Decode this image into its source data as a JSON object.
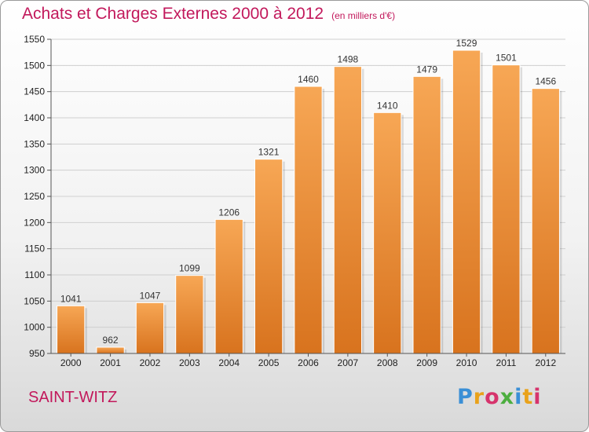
{
  "header": {
    "title": "Achats et Charges Externes 2000 à 2012",
    "unit": "(en milliers d'€)"
  },
  "footer": {
    "city": "SAINT-WITZ",
    "logo_text": "Proxiti"
  },
  "colors": {
    "title": "#c2185b",
    "bar_light": "#f7a755",
    "bar_dark": "#d8731e"
  },
  "chart_data": {
    "type": "bar",
    "title": "Achats et Charges Externes 2000 à 2012",
    "subtitle": "(en milliers d'€)",
    "categories": [
      "2000",
      "2001",
      "2002",
      "2003",
      "2004",
      "2005",
      "2006",
      "2007",
      "2008",
      "2009",
      "2010",
      "2011",
      "2012"
    ],
    "values": [
      1041,
      962,
      1047,
      1099,
      1206,
      1321,
      1460,
      1498,
      1410,
      1479,
      1529,
      1501,
      1456
    ],
    "ylim": [
      950,
      1550
    ],
    "yticks": [
      950,
      1000,
      1050,
      1100,
      1150,
      1200,
      1250,
      1300,
      1350,
      1400,
      1450,
      1500,
      1550
    ],
    "grid": true,
    "legend": "none"
  }
}
